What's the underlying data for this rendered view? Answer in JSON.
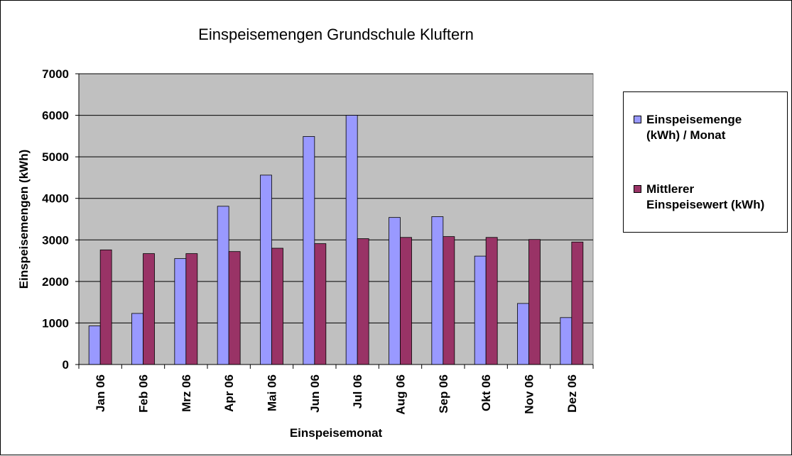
{
  "chart_data": {
    "type": "bar",
    "title": "Einspeisemengen Grundschule Kluftern",
    "xlabel": "Einspeisemonat",
    "ylabel": "Einspeisemengen (kWh)",
    "ylim": [
      0,
      7000
    ],
    "yticks": [
      0,
      1000,
      2000,
      3000,
      4000,
      5000,
      6000,
      7000
    ],
    "grid": true,
    "legend_position": "right",
    "categories": [
      "Jan 06",
      "Feb 06",
      "Mrz 06",
      "Apr 06",
      "Mai 06",
      "Jun 06",
      "Jul 06",
      "Aug 06",
      "Sep 06",
      "Okt 06",
      "Nov 06",
      "Dez 06"
    ],
    "series": [
      {
        "name": "Einspeisemenge (kWh) / Monat",
        "legend_label": "Einspeisemenge\n(kWh) / Monat",
        "color": "#9999ff",
        "values": [
          930,
          1230,
          2550,
          3810,
          4560,
          5490,
          6000,
          3540,
          3560,
          2610,
          1470,
          1130
        ]
      },
      {
        "name": "Mittlerer Einspeisewert (kWh)",
        "legend_label": "Mittlerer\nEinspeisewert (kWh)",
        "color": "#993366",
        "values": [
          2760,
          2670,
          2670,
          2720,
          2800,
          2910,
          3030,
          3060,
          3080,
          3060,
          3010,
          2950
        ]
      }
    ],
    "plot_background": "#c0c0c0"
  }
}
